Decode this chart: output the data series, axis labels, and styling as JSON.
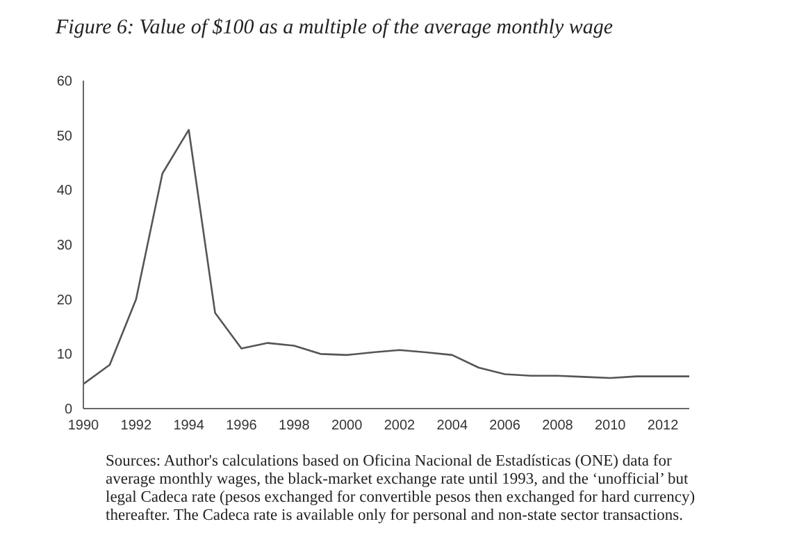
{
  "chart_data": {
    "type": "line",
    "title": "Figure 6: Value of $100 as a multiple of the average monthly wage",
    "x": [
      1990,
      1991,
      1992,
      1993,
      1994,
      1995,
      1996,
      1997,
      1998,
      1999,
      2000,
      2001,
      2002,
      2003,
      2004,
      2005,
      2006,
      2007,
      2008,
      2009,
      2010,
      2011,
      2012,
      2013
    ],
    "series": [
      {
        "color": "#555555",
        "values": [
          4.5,
          8,
          20,
          43,
          51,
          17.5,
          11,
          12,
          11.5,
          10,
          9.8,
          10.3,
          10.7,
          10.3,
          9.8,
          7.5,
          6.3,
          6,
          6,
          5.8,
          5.6,
          5.9,
          5.9,
          5.9
        ]
      }
    ],
    "xlim": [
      1990,
      2013
    ],
    "xticks": [
      1990,
      1992,
      1994,
      1996,
      1998,
      2000,
      2002,
      2004,
      2006,
      2008,
      2010,
      2012
    ],
    "ylim": [
      0,
      60
    ],
    "yticks": [
      0,
      10,
      20,
      30,
      40,
      50,
      60
    ],
    "grid": false,
    "legend": false,
    "marker": "none",
    "line_style": "solid",
    "annotations": [
      "Sources: Author's calculations based on Oficina Nacional de Estadísticas (ONE) data for average monthly wages, the black-market exchange rate until 1993, and the ‘unofficial’ but legal Cadeca rate (pesos exchanged for convertible pesos then exchanged for hard currency) thereafter. The Cadeca rate is available only for personal and non-state sector transactions."
    ]
  }
}
